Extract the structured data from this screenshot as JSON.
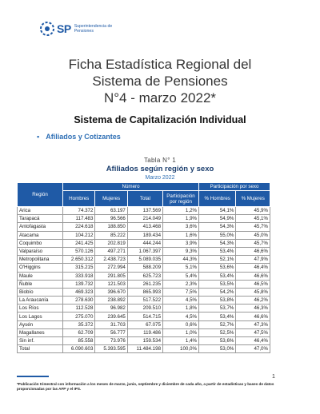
{
  "header": {
    "logo_mark": "SP",
    "logo_line1": "Superintendencia de",
    "logo_line2": "Pensiones"
  },
  "title": {
    "line1": "Ficha Estadística Regional del",
    "line2": "Sistema de Pensiones",
    "line3": "N°4 - marzo 2022*"
  },
  "subtitle": "Sistema de Capitalización Individual",
  "bullet": "Afiliados y Cotizantes",
  "table": {
    "number": "Tabla N° 1",
    "title": "Afiliados según región y sexo",
    "date": "Marzo 2022",
    "headers": {
      "region": "Región",
      "numero": "Número",
      "participacion": "Participación por sexo",
      "hombres": "Hombres",
      "mujeres": "Mujeres",
      "total": "Total",
      "part_region": "Participación por región",
      "pct_hombres": "% Hombres",
      "pct_mujeres": "% Mujeres"
    },
    "rows": [
      [
        "Arica",
        "74.372",
        "63.197",
        "137.569",
        "1,2%",
        "54,1%",
        "45,9%"
      ],
      [
        "Tarapacá",
        "117.483",
        "96.566",
        "214.049",
        "1,9%",
        "54,9%",
        "45,1%"
      ],
      [
        "Antofagasta",
        "224.618",
        "188.850",
        "413.468",
        "3,6%",
        "54,3%",
        "45,7%"
      ],
      [
        "Atacama",
        "104.212",
        "85.222",
        "189.434",
        "1,6%",
        "55,0%",
        "45,0%"
      ],
      [
        "Coquimbo",
        "241.425",
        "202.819",
        "444.244",
        "3,9%",
        "54,3%",
        "45,7%"
      ],
      [
        "Valparaíso",
        "570.126",
        "497.271",
        "1.067.397",
        "9,3%",
        "53,4%",
        "46,6%"
      ],
      [
        "Metropolitana",
        "2.650.312",
        "2.438.723",
        "5.089.035",
        "44,3%",
        "52,1%",
        "47,9%"
      ],
      [
        "O'Higgins",
        "315.215",
        "272.994",
        "588.209",
        "5,1%",
        "53,6%",
        "46,4%"
      ],
      [
        "Maule",
        "333.918",
        "291.805",
        "625.723",
        "5,4%",
        "53,4%",
        "46,6%"
      ],
      [
        "Ñuble",
        "139.732",
        "121.503",
        "261.235",
        "2,3%",
        "53,5%",
        "46,5%"
      ],
      [
        "Biobío",
        "469.323",
        "396.670",
        "865.993",
        "7,5%",
        "54,2%",
        "45,8%"
      ],
      [
        "La Araucanía",
        "278.630",
        "238.892",
        "517.522",
        "4,5%",
        "53,8%",
        "46,2%"
      ],
      [
        "Los Ríos",
        "112.528",
        "96.982",
        "209.510",
        "1,8%",
        "53,7%",
        "46,3%"
      ],
      [
        "Los Lagos",
        "275.070",
        "239.645",
        "514.715",
        "4,5%",
        "53,4%",
        "46,6%"
      ],
      [
        "Aysén",
        "35.372",
        "31.703",
        "67.075",
        "0,6%",
        "52,7%",
        "47,3%"
      ],
      [
        "Magallanes",
        "62.709",
        "56.777",
        "119.486",
        "1,0%",
        "52,5%",
        "47,5%"
      ],
      [
        "Sin inf.",
        "85.558",
        "73.976",
        "159.534",
        "1,4%",
        "53,6%",
        "46,4%"
      ]
    ],
    "total": [
      "Total",
      "6.090.603",
      "5.393.595",
      "11.484.198",
      "100,0%",
      "53,0%",
      "47,0%"
    ]
  },
  "page_number": "1",
  "footnote": "*Publicación trimestral con información a los meses de marzo, junio, septiembre y diciembre de cada año, a partir de estadísticas y bases de datos proporcionadas por las AFP y el IPS."
}
